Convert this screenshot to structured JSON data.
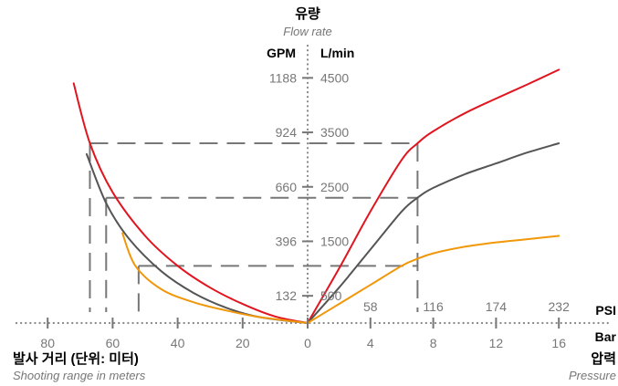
{
  "chart_data": {
    "type": "line",
    "title": "유량",
    "subtitle": "Flow rate",
    "flow_axis": {
      "unit_left": "GPM",
      "unit_right": "L/min",
      "gpm_ticks": [
        "1188",
        "924",
        "660",
        "396",
        "132"
      ],
      "lmin_ticks": [
        "4500",
        "3500",
        "2500",
        "1500",
        "500"
      ],
      "lmin_values": [
        4500,
        3500,
        2500,
        1500,
        500
      ],
      "range_lmin": [
        0,
        4500
      ]
    },
    "range_axis": {
      "label": "발사 거리 (단위: 미터)",
      "sublabel": "Shooting range in meters",
      "ticks": [
        "80",
        "60",
        "40",
        "20",
        "0"
      ],
      "tick_values": [
        80,
        60,
        40,
        20,
        0
      ],
      "range_m": [
        80,
        0
      ]
    },
    "pressure_axis": {
      "label": "압력",
      "sublabel": "Pressure",
      "unit_psi": "PSI",
      "unit_bar": "Bar",
      "psi_ticks": [
        "58",
        "116",
        "174",
        "232"
      ],
      "bar_ticks": [
        "0",
        "4",
        "8",
        "12",
        "16"
      ],
      "bar_values": [
        0,
        4,
        8,
        12,
        16
      ],
      "range_bar": [
        0,
        16
      ]
    },
    "series": [
      {
        "color": "#e0151f",
        "range_curve": [
          [
            72,
            4400
          ],
          [
            67,
            3300
          ],
          [
            60,
            2400
          ],
          [
            50,
            1600
          ],
          [
            40,
            1050
          ],
          [
            30,
            650
          ],
          [
            20,
            350
          ],
          [
            10,
            120
          ],
          [
            0,
            0
          ]
        ],
        "pressure_curve": [
          [
            0,
            0
          ],
          [
            2,
            1000
          ],
          [
            4,
            2050
          ],
          [
            6,
            3000
          ],
          [
            7,
            3300
          ],
          [
            8,
            3520
          ],
          [
            10,
            3850
          ],
          [
            12,
            4120
          ],
          [
            14,
            4380
          ],
          [
            16,
            4650
          ]
        ]
      },
      {
        "color": "#555555",
        "range_curve": [
          [
            68,
            3100
          ],
          [
            62,
            2200
          ],
          [
            55,
            1550
          ],
          [
            45,
            950
          ],
          [
            35,
            550
          ],
          [
            25,
            280
          ],
          [
            15,
            110
          ],
          [
            0,
            0
          ]
        ],
        "pressure_curve": [
          [
            0,
            0
          ],
          [
            2,
            650
          ],
          [
            4,
            1350
          ],
          [
            6,
            2050
          ],
          [
            7,
            2300
          ],
          [
            8,
            2480
          ],
          [
            10,
            2730
          ],
          [
            12,
            2930
          ],
          [
            14,
            3130
          ],
          [
            16,
            3300
          ]
        ]
      },
      {
        "color": "#f0980a",
        "range_curve": [
          [
            57,
            1650
          ],
          [
            53,
            1050
          ],
          [
            45,
            620
          ],
          [
            35,
            380
          ],
          [
            25,
            230
          ],
          [
            15,
            110
          ],
          [
            0,
            0
          ]
        ],
        "pressure_curve": [
          [
            0,
            0
          ],
          [
            2,
            350
          ],
          [
            4,
            700
          ],
          [
            6,
            1050
          ],
          [
            7,
            1180
          ],
          [
            8,
            1280
          ],
          [
            10,
            1400
          ],
          [
            12,
            1480
          ],
          [
            14,
            1540
          ],
          [
            16,
            1600
          ]
        ]
      }
    ],
    "reference_lines": [
      {
        "flow_lmin": 3300,
        "range_m": 67,
        "pressure_bar": 7
      },
      {
        "flow_lmin": 2300,
        "range_m": 62,
        "pressure_bar": 7
      },
      {
        "flow_lmin": 1050,
        "range_m": 52,
        "pressure_bar": 7
      }
    ],
    "grid": false
  }
}
